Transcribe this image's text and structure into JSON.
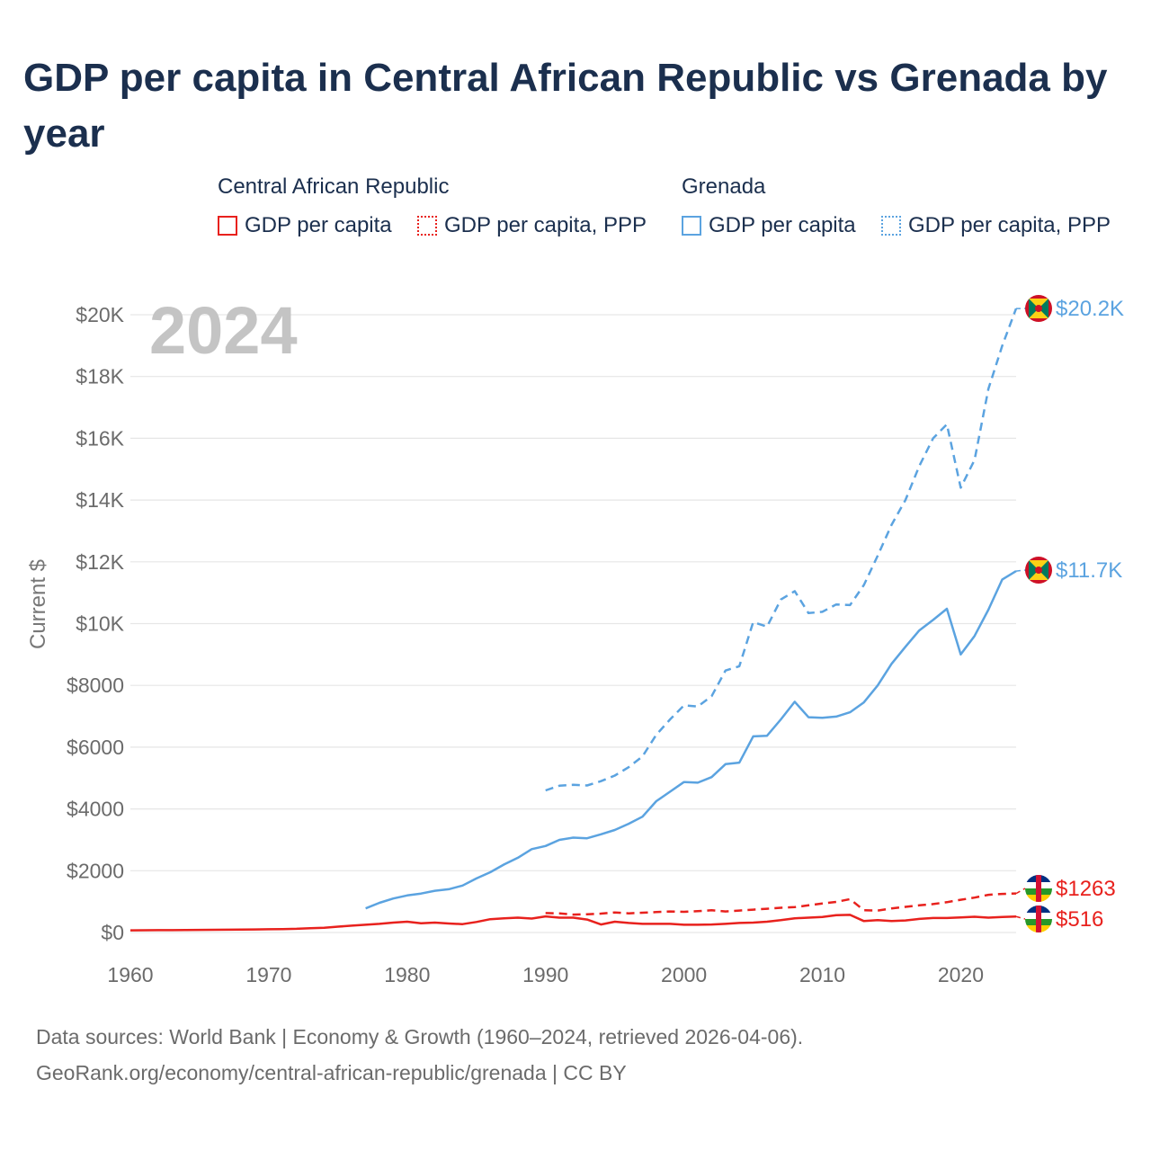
{
  "title": "GDP per capita in Central African Republic vs Grenada by year",
  "legend": {
    "groups": [
      {
        "name": "Central African Republic",
        "color": "#e8211d",
        "items": [
          {
            "label": "GDP per capita",
            "style": "solid"
          },
          {
            "label": "GDP per capita, PPP",
            "style": "dotted"
          }
        ]
      },
      {
        "name": "Grenada",
        "color": "#5ba3e0",
        "items": [
          {
            "label": "GDP per capita",
            "style": "solid"
          },
          {
            "label": "GDP per capita, PPP",
            "style": "dotted"
          }
        ]
      }
    ]
  },
  "year_label": "2024",
  "footer": {
    "line1": "Data sources: World Bank | Economy & Growth (1960–2024, retrieved 2026-04-06).",
    "line2": "GeoRank.org/economy/central-african-republic/grenada | CC BY"
  },
  "chart_data": {
    "type": "line",
    "ylabel": "Current $",
    "xlim": [
      1960,
      2024
    ],
    "ylim": [
      0,
      20000
    ],
    "x_ticks": [
      1960,
      1970,
      1980,
      1990,
      2000,
      2010,
      2020
    ],
    "y_ticks": [
      {
        "value": 0,
        "label": "$0"
      },
      {
        "value": 2000,
        "label": "$2000"
      },
      {
        "value": 4000,
        "label": "$4000"
      },
      {
        "value": 6000,
        "label": "$6000"
      },
      {
        "value": 8000,
        "label": "$8000"
      },
      {
        "value": 10000,
        "label": "$10K"
      },
      {
        "value": 12000,
        "label": "$12K"
      },
      {
        "value": 14000,
        "label": "$14K"
      },
      {
        "value": 16000,
        "label": "$16K"
      },
      {
        "value": 18000,
        "label": "$18K"
      },
      {
        "value": 20000,
        "label": "$20K"
      }
    ],
    "series": [
      {
        "name": "Grenada GDP per capita, PPP",
        "country": "Grenada",
        "color": "#5ba3e0",
        "dash": "dashed",
        "end_label": "$20.2K",
        "points": [
          [
            1990,
            4600
          ],
          [
            1991,
            4750
          ],
          [
            1992,
            4780
          ],
          [
            1993,
            4760
          ],
          [
            1994,
            4900
          ],
          [
            1995,
            5080
          ],
          [
            1996,
            5350
          ],
          [
            1997,
            5700
          ],
          [
            1998,
            6400
          ],
          [
            1999,
            6900
          ],
          [
            2000,
            7350
          ],
          [
            2001,
            7320
          ],
          [
            2002,
            7650
          ],
          [
            2003,
            8480
          ],
          [
            2004,
            8620
          ],
          [
            2005,
            10050
          ],
          [
            2006,
            9900
          ],
          [
            2007,
            10780
          ],
          [
            2008,
            11050
          ],
          [
            2009,
            10340
          ],
          [
            2010,
            10380
          ],
          [
            2011,
            10620
          ],
          [
            2012,
            10600
          ],
          [
            2013,
            11250
          ],
          [
            2014,
            12200
          ],
          [
            2015,
            13200
          ],
          [
            2016,
            14000
          ],
          [
            2017,
            15100
          ],
          [
            2018,
            16000
          ],
          [
            2019,
            16450
          ],
          [
            2020,
            14400
          ],
          [
            2021,
            15300
          ],
          [
            2022,
            17600
          ],
          [
            2023,
            19000
          ],
          [
            2024,
            20200
          ]
        ]
      },
      {
        "name": "Grenada GDP per capita",
        "country": "Grenada",
        "color": "#5ba3e0",
        "dash": "solid",
        "end_label": "$11.7K",
        "points": [
          [
            1977,
            780
          ],
          [
            1978,
            960
          ],
          [
            1979,
            1100
          ],
          [
            1980,
            1200
          ],
          [
            1981,
            1260
          ],
          [
            1982,
            1350
          ],
          [
            1983,
            1400
          ],
          [
            1984,
            1520
          ],
          [
            1985,
            1750
          ],
          [
            1986,
            1950
          ],
          [
            1987,
            2200
          ],
          [
            1988,
            2420
          ],
          [
            1989,
            2700
          ],
          [
            1990,
            2800
          ],
          [
            1991,
            3000
          ],
          [
            1992,
            3070
          ],
          [
            1993,
            3050
          ],
          [
            1994,
            3180
          ],
          [
            1995,
            3320
          ],
          [
            1996,
            3520
          ],
          [
            1997,
            3750
          ],
          [
            1998,
            4250
          ],
          [
            1999,
            4560
          ],
          [
            2000,
            4870
          ],
          [
            2001,
            4850
          ],
          [
            2002,
            5030
          ],
          [
            2003,
            5450
          ],
          [
            2004,
            5500
          ],
          [
            2005,
            6350
          ],
          [
            2006,
            6370
          ],
          [
            2007,
            6900
          ],
          [
            2008,
            7470
          ],
          [
            2009,
            6970
          ],
          [
            2010,
            6950
          ],
          [
            2011,
            6990
          ],
          [
            2012,
            7130
          ],
          [
            2013,
            7450
          ],
          [
            2014,
            8000
          ],
          [
            2015,
            8700
          ],
          [
            2016,
            9250
          ],
          [
            2017,
            9780
          ],
          [
            2018,
            10120
          ],
          [
            2019,
            10480
          ],
          [
            2020,
            9000
          ],
          [
            2021,
            9600
          ],
          [
            2022,
            10450
          ],
          [
            2023,
            11430
          ],
          [
            2024,
            11700
          ]
        ]
      },
      {
        "name": "Central African Republic GDP per capita, PPP",
        "country": "Central African Republic",
        "color": "#e8211d",
        "dash": "dashed",
        "end_label": "$1263",
        "points": [
          [
            1990,
            630
          ],
          [
            1991,
            620
          ],
          [
            1992,
            580
          ],
          [
            1993,
            590
          ],
          [
            1994,
            610
          ],
          [
            1995,
            650
          ],
          [
            1996,
            620
          ],
          [
            1997,
            640
          ],
          [
            1998,
            660
          ],
          [
            1999,
            680
          ],
          [
            2000,
            670
          ],
          [
            2001,
            690
          ],
          [
            2002,
            720
          ],
          [
            2003,
            680
          ],
          [
            2004,
            710
          ],
          [
            2005,
            740
          ],
          [
            2006,
            770
          ],
          [
            2007,
            800
          ],
          [
            2008,
            820
          ],
          [
            2009,
            880
          ],
          [
            2010,
            940
          ],
          [
            2011,
            990
          ],
          [
            2012,
            1080
          ],
          [
            2013,
            720
          ],
          [
            2014,
            710
          ],
          [
            2015,
            780
          ],
          [
            2016,
            830
          ],
          [
            2017,
            880
          ],
          [
            2018,
            920
          ],
          [
            2019,
            980
          ],
          [
            2020,
            1060
          ],
          [
            2021,
            1130
          ],
          [
            2022,
            1220
          ],
          [
            2023,
            1250
          ],
          [
            2024,
            1263
          ]
        ]
      },
      {
        "name": "Central African Republic GDP per capita",
        "country": "Central African Republic",
        "color": "#e8211d",
        "dash": "solid",
        "end_label": "$516",
        "points": [
          [
            1960,
            70
          ],
          [
            1961,
            72
          ],
          [
            1962,
            75
          ],
          [
            1963,
            77
          ],
          [
            1964,
            80
          ],
          [
            1965,
            83
          ],
          [
            1966,
            86
          ],
          [
            1967,
            90
          ],
          [
            1968,
            95
          ],
          [
            1969,
            100
          ],
          [
            1970,
            105
          ],
          [
            1971,
            110
          ],
          [
            1972,
            120
          ],
          [
            1973,
            140
          ],
          [
            1974,
            155
          ],
          [
            1975,
            190
          ],
          [
            1976,
            220
          ],
          [
            1977,
            250
          ],
          [
            1978,
            280
          ],
          [
            1979,
            320
          ],
          [
            1980,
            350
          ],
          [
            1981,
            300
          ],
          [
            1982,
            320
          ],
          [
            1983,
            290
          ],
          [
            1984,
            270
          ],
          [
            1985,
            340
          ],
          [
            1986,
            430
          ],
          [
            1987,
            460
          ],
          [
            1988,
            480
          ],
          [
            1989,
            450
          ],
          [
            1990,
            520
          ],
          [
            1991,
            480
          ],
          [
            1992,
            480
          ],
          [
            1993,
            420
          ],
          [
            1994,
            260
          ],
          [
            1995,
            350
          ],
          [
            1996,
            310
          ],
          [
            1997,
            280
          ],
          [
            1998,
            280
          ],
          [
            1999,
            280
          ],
          [
            2000,
            250
          ],
          [
            2001,
            250
          ],
          [
            2002,
            260
          ],
          [
            2003,
            280
          ],
          [
            2004,
            310
          ],
          [
            2005,
            320
          ],
          [
            2006,
            350
          ],
          [
            2007,
            400
          ],
          [
            2008,
            460
          ],
          [
            2009,
            480
          ],
          [
            2010,
            500
          ],
          [
            2011,
            560
          ],
          [
            2012,
            570
          ],
          [
            2013,
            370
          ],
          [
            2014,
            400
          ],
          [
            2015,
            370
          ],
          [
            2016,
            390
          ],
          [
            2017,
            440
          ],
          [
            2018,
            470
          ],
          [
            2019,
            470
          ],
          [
            2020,
            490
          ],
          [
            2021,
            510
          ],
          [
            2022,
            480
          ],
          [
            2023,
            500
          ],
          [
            2024,
            516
          ]
        ]
      }
    ]
  }
}
